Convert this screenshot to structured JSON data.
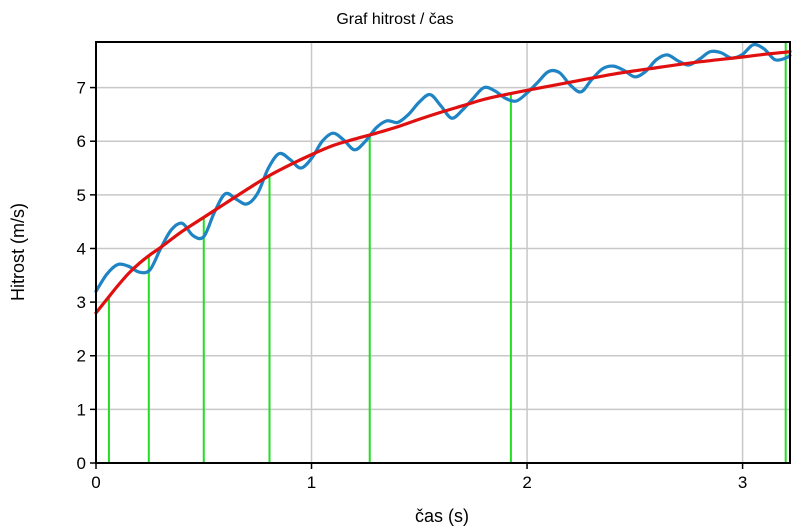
{
  "chart_data": {
    "type": "line",
    "title": "Graf hitrost / čas",
    "xlabel": "čas (s)",
    "ylabel": "Hitrost (m/s)",
    "xlim": [
      0,
      3.22
    ],
    "ylim": [
      0,
      7.85
    ],
    "x_ticks": [
      0,
      1,
      2,
      3
    ],
    "y_ticks": [
      0,
      1,
      2,
      3,
      4,
      5,
      6,
      7
    ],
    "grid": true,
    "legend": "none",
    "colors": {
      "measured": "#1f84c4",
      "fit": "#e01010",
      "markers": "#22dd22",
      "grid": "#c8c8c8"
    },
    "series": [
      {
        "style": "smooth",
        "color": "#1f84c4",
        "x": [
          0.0,
          0.05,
          0.1,
          0.15,
          0.2,
          0.25,
          0.3,
          0.35,
          0.4,
          0.45,
          0.5,
          0.55,
          0.6,
          0.65,
          0.7,
          0.75,
          0.8,
          0.85,
          0.9,
          0.95,
          1.0,
          1.05,
          1.1,
          1.15,
          1.2,
          1.25,
          1.3,
          1.35,
          1.4,
          1.45,
          1.5,
          1.55,
          1.6,
          1.65,
          1.7,
          1.75,
          1.8,
          1.85,
          1.9,
          1.95,
          2.0,
          2.05,
          2.1,
          2.15,
          2.2,
          2.25,
          2.3,
          2.35,
          2.4,
          2.45,
          2.5,
          2.55,
          2.6,
          2.65,
          2.7,
          2.75,
          2.8,
          2.85,
          2.9,
          2.95,
          3.0,
          3.05,
          3.1,
          3.15,
          3.2,
          3.22
        ],
        "y": [
          3.2,
          3.52,
          3.7,
          3.67,
          3.56,
          3.6,
          4.0,
          4.35,
          4.47,
          4.24,
          4.22,
          4.68,
          5.02,
          4.92,
          4.83,
          5.03,
          5.5,
          5.77,
          5.66,
          5.5,
          5.68,
          6.0,
          6.15,
          6.02,
          5.84,
          6.0,
          6.25,
          6.38,
          6.35,
          6.5,
          6.73,
          6.87,
          6.66,
          6.43,
          6.58,
          6.8,
          7.0,
          6.94,
          6.8,
          6.75,
          6.9,
          7.1,
          7.3,
          7.28,
          7.05,
          6.92,
          7.15,
          7.35,
          7.4,
          7.32,
          7.2,
          7.3,
          7.52,
          7.61,
          7.5,
          7.42,
          7.53,
          7.67,
          7.65,
          7.55,
          7.62,
          7.8,
          7.72,
          7.52,
          7.55,
          7.6
        ]
      },
      {
        "style": "smooth",
        "color": "#e01010",
        "x": [
          0.0,
          0.05,
          0.1,
          0.15,
          0.2,
          0.25,
          0.3,
          0.4,
          0.5,
          0.6,
          0.7,
          0.8,
          0.9,
          1.0,
          1.1,
          1.2,
          1.3,
          1.4,
          1.5,
          1.6,
          1.7,
          1.8,
          1.9,
          2.0,
          2.2,
          2.4,
          2.6,
          2.8,
          3.0,
          3.1,
          3.2,
          3.22
        ],
        "y": [
          2.8,
          3.05,
          3.3,
          3.53,
          3.72,
          3.88,
          4.02,
          4.32,
          4.58,
          4.84,
          5.1,
          5.35,
          5.56,
          5.75,
          5.92,
          6.04,
          6.15,
          6.27,
          6.41,
          6.54,
          6.66,
          6.78,
          6.87,
          6.95,
          7.1,
          7.25,
          7.37,
          7.48,
          7.57,
          7.62,
          7.66,
          7.67
        ]
      }
    ],
    "markers": {
      "color": "#22dd22",
      "x": [
        0.06,
        0.245,
        0.5,
        0.805,
        1.27,
        1.925,
        3.2
      ]
    }
  }
}
